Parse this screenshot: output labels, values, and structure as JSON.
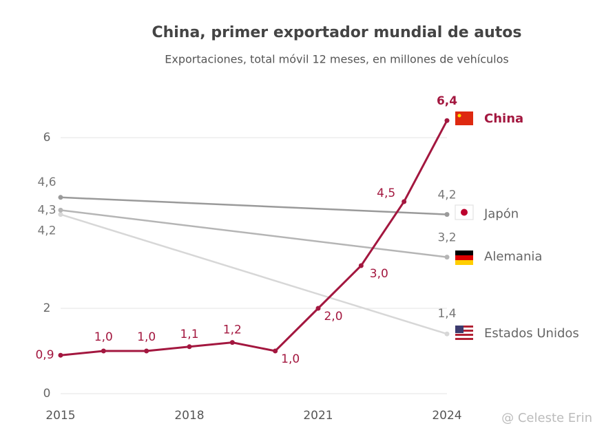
{
  "chart_data": {
    "type": "line",
    "title": "China, primer exportador mundial de autos",
    "subtitle": "Exportaciones, total móvil 12 meses, en millones de vehículos",
    "xlim": [
      2015,
      2024
    ],
    "xticks": [
      2015,
      2018,
      2021,
      2024
    ],
    "ylim": [
      0,
      7
    ],
    "yticks": [
      0,
      2,
      6
    ],
    "grid": true,
    "series": [
      {
        "name": "China",
        "color": "#a3173f",
        "x": [
          2015,
          2016,
          2017,
          2018,
          2019,
          2020,
          2021,
          2022,
          2023,
          2024
        ],
        "values": [
          0.9,
          1.0,
          1.0,
          1.1,
          1.2,
          1.0,
          2.0,
          3.0,
          4.5,
          6.4
        ],
        "value_labels": [
          "0,9",
          "1,0",
          "1,0",
          "1,1",
          "1,2",
          "1,0",
          "2,0",
          "3,0",
          "4,5",
          "6,4"
        ]
      },
      {
        "name": "Japón",
        "color": "#9a9a9a",
        "x": [
          2015,
          2024
        ],
        "values": [
          4.6,
          4.2
        ],
        "value_labels": [
          "4,6",
          "4,2"
        ]
      },
      {
        "name": "Alemania",
        "color": "#b5b5b5",
        "x": [
          2015,
          2024
        ],
        "values": [
          4.3,
          3.2
        ],
        "value_labels": [
          "4,3",
          "3,2"
        ]
      },
      {
        "name": "Estados Unidos",
        "color": "#d7d7d7",
        "x": [
          2015,
          2024
        ],
        "values": [
          4.2,
          1.4
        ],
        "value_labels": [
          "4,2",
          "1,4"
        ]
      }
    ],
    "watermark": "@ Celeste Erin"
  }
}
